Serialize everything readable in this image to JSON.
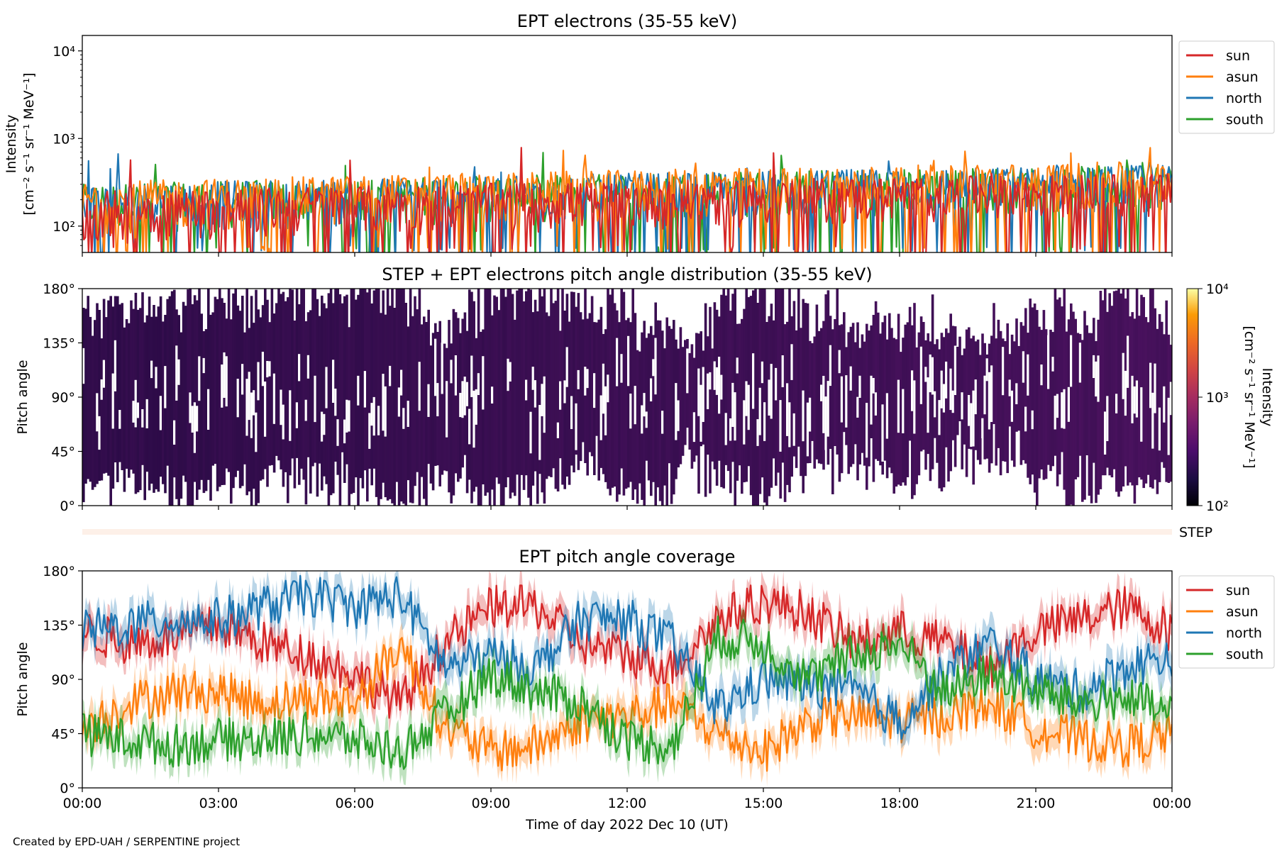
{
  "figure": {
    "credit": "Created by EPD-UAH / SERPENTINE project",
    "xlabel": "Time of day 2022 Dec 10 (UT)",
    "xticks": [
      "00:00",
      "03:00",
      "06:00",
      "09:00",
      "12:00",
      "15:00",
      "18:00",
      "21:00",
      "00:00"
    ]
  },
  "colors": {
    "sun": "#d62728",
    "asun": "#ff7f0e",
    "north": "#1f77b4",
    "south": "#2ca02c",
    "step_bar": "#fdf0e8"
  },
  "chart_data": [
    {
      "id": "intensity",
      "type": "line",
      "title": "EPT electrons (35-55 keV)",
      "ylabel": [
        "Intensity",
        "[cm⁻² s⁻¹ sr⁻¹ MeV⁻¹]"
      ],
      "yscale": "log",
      "ylim": [
        50,
        15000
      ],
      "yticks": [
        "10⁴",
        "10³",
        "10²"
      ],
      "xlim_hours": [
        0,
        24
      ],
      "legend": {
        "position": "upper right (outside)",
        "entries": [
          "sun",
          "asun",
          "north",
          "south"
        ]
      },
      "series_envelope": [
        {
          "name": "south",
          "typical_range_start": [
            80,
            300
          ],
          "typical_range_end": [
            150,
            500
          ],
          "max_peak": 700
        },
        {
          "name": "north",
          "typical_range_start": [
            80,
            300
          ],
          "typical_range_end": [
            150,
            500
          ],
          "max_peak": 750
        },
        {
          "name": "asun",
          "typical_range_start": [
            80,
            320
          ],
          "typical_range_end": [
            150,
            550
          ],
          "max_peak": 800
        },
        {
          "name": "sun",
          "typical_range_start": [
            60,
            250
          ],
          "typical_range_end": [
            120,
            400
          ],
          "max_peak": 850
        }
      ]
    },
    {
      "id": "pad",
      "type": "heatmap",
      "title": "STEP + EPT electrons pitch angle distribution (35-55 keV)",
      "ylabel": "Pitch angle",
      "ylim": [
        0,
        180
      ],
      "yticks": [
        "180°",
        "135°",
        "90°",
        "45°",
        "0°"
      ],
      "colorbar": {
        "label": [
          "Intensity",
          "[cm⁻² s⁻¹ sr⁻¹ MeV⁻¹]"
        ],
        "scale": "log",
        "range": [
          100,
          10000
        ],
        "ticks": [
          "10⁴",
          "10³",
          "10²"
        ],
        "colormap": "inferno"
      },
      "intensity_trend": "≈150 at 00:00 rising to ≈400 at 24:00"
    },
    {
      "id": "step",
      "type": "bar",
      "label": "STEP"
    },
    {
      "id": "coverage",
      "type": "line",
      "title": "EPT pitch angle coverage",
      "ylabel": "Pitch angle",
      "ylim": [
        0,
        180
      ],
      "yticks": [
        "180°",
        "135°",
        "90°",
        "45°",
        "0°"
      ],
      "xlim_hours": [
        0,
        24
      ],
      "legend": {
        "position": "upper right (outside)",
        "entries": [
          "sun",
          "asun",
          "north",
          "south"
        ]
      },
      "series": [
        {
          "name": "sun",
          "x_hours": [
            0,
            1,
            2,
            3,
            4,
            5,
            6,
            7,
            8,
            9,
            10,
            11,
            12,
            13,
            14,
            15,
            16,
            17,
            18,
            19,
            20,
            21,
            22,
            23,
            24
          ],
          "values": [
            130,
            120,
            125,
            135,
            120,
            110,
            95,
            70,
            120,
            150,
            150,
            120,
            110,
            100,
            140,
            155,
            145,
            120,
            130,
            120,
            100,
            130,
            140,
            150,
            130
          ]
        },
        {
          "name": "asun",
          "x_hours": [
            0,
            1,
            2,
            3,
            4,
            5,
            6,
            7,
            8,
            9,
            10,
            11,
            12,
            13,
            14,
            15,
            16,
            17,
            18,
            19,
            20,
            21,
            22,
            23,
            24
          ],
          "values": [
            50,
            70,
            80,
            80,
            70,
            75,
            70,
            120,
            50,
            30,
            35,
            55,
            60,
            70,
            45,
            30,
            55,
            60,
            55,
            60,
            70,
            50,
            40,
            35,
            45
          ]
        },
        {
          "name": "north",
          "x_hours": [
            0,
            1,
            2,
            3,
            4,
            5,
            6,
            7,
            8,
            9,
            10,
            11,
            12,
            13,
            14,
            15,
            16,
            17,
            18,
            19,
            20,
            21,
            22,
            23,
            24
          ],
          "values": [
            130,
            135,
            140,
            140,
            150,
            160,
            150,
            160,
            100,
            110,
            100,
            140,
            140,
            120,
            65,
            90,
            85,
            80,
            55,
            95,
            120,
            90,
            80,
            100,
            110
          ]
        },
        {
          "name": "south",
          "x_hours": [
            0,
            1,
            2,
            3,
            4,
            5,
            6,
            7,
            8,
            9,
            10,
            11,
            12,
            13,
            14,
            15,
            16,
            17,
            18,
            19,
            20,
            21,
            22,
            23,
            24
          ],
          "values": [
            45,
            40,
            35,
            40,
            40,
            45,
            40,
            30,
            60,
            95,
            80,
            70,
            40,
            35,
            125,
            120,
            90,
            110,
            120,
            80,
            95,
            80,
            70,
            75,
            60
          ]
        }
      ]
    }
  ]
}
